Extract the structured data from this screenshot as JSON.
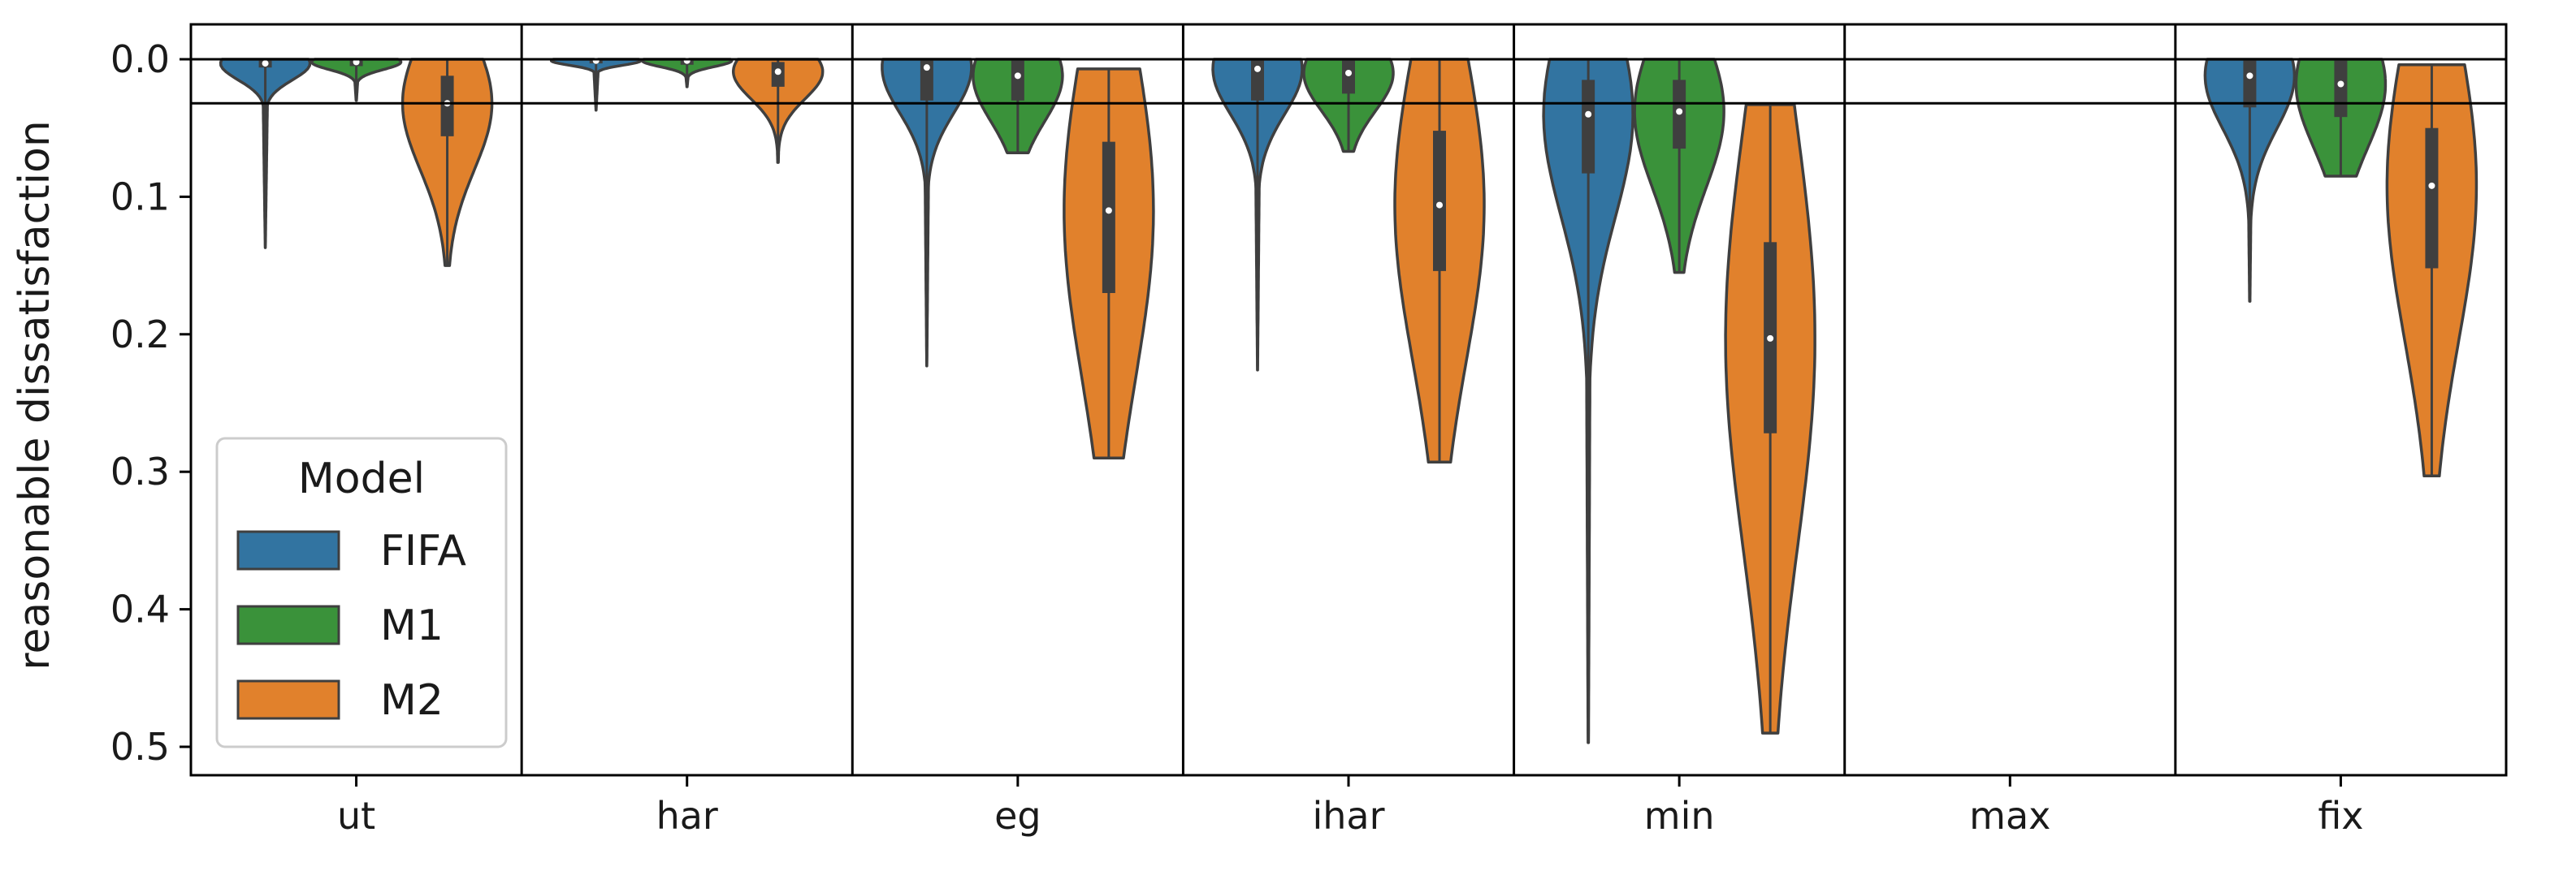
{
  "chart_data": {
    "type": "violin",
    "title": "",
    "xlabel": "",
    "ylabel": "reasonable dissatisfaction",
    "ylim": [
      0.52,
      -0.025
    ],
    "y_inverted": true,
    "yticks": [
      "0.0",
      "0.1",
      "0.2",
      "0.3",
      "0.4",
      "0.5"
    ],
    "ytick_values": [
      0.0,
      0.1,
      0.2,
      0.3,
      0.4,
      0.5
    ],
    "categories": [
      "ut",
      "har",
      "eg",
      "ihar",
      "min",
      "max",
      "fix"
    ],
    "reference_lines": [
      0.0,
      0.032
    ],
    "legend": {
      "title": "Model",
      "position": "lower-left",
      "entries": [
        "FIFA",
        "M1",
        "M2"
      ]
    },
    "series": [
      {
        "name": "FIFA",
        "color": "#3274a1",
        "violins": [
          {
            "category": "ut",
            "min": 0.0,
            "q1": 0.0,
            "median": 0.003,
            "q3": 0.006,
            "max": 0.137
          },
          {
            "category": "har",
            "min": 0.0,
            "q1": 0.0,
            "median": 0.001,
            "q3": 0.003,
            "max": 0.037
          },
          {
            "category": "eg",
            "min": 0.0,
            "q1": 0.0,
            "median": 0.006,
            "q3": 0.03,
            "max": 0.223
          },
          {
            "category": "ihar",
            "min": 0.0,
            "q1": 0.0,
            "median": 0.007,
            "q3": 0.03,
            "max": 0.226
          },
          {
            "category": "min",
            "min": 0.0,
            "q1": 0.015,
            "median": 0.04,
            "q3": 0.083,
            "max": 0.497
          },
          {
            "category": "max",
            "min": 0.0,
            "q1": 0.0,
            "median": 0.0,
            "q3": 0.0,
            "max": 0.0
          },
          {
            "category": "fix",
            "min": 0.0,
            "q1": 0.0,
            "median": 0.012,
            "q3": 0.035,
            "max": 0.176
          }
        ]
      },
      {
        "name": "M1",
        "color": "#3a923a",
        "violins": [
          {
            "category": "ut",
            "min": 0.0,
            "q1": 0.0,
            "median": 0.002,
            "q3": 0.005,
            "max": 0.03
          },
          {
            "category": "har",
            "min": 0.0,
            "q1": 0.0,
            "median": 0.001,
            "q3": 0.004,
            "max": 0.02
          },
          {
            "category": "eg",
            "min": 0.0,
            "q1": 0.0,
            "median": 0.012,
            "q3": 0.03,
            "max": 0.068
          },
          {
            "category": "ihar",
            "min": 0.0,
            "q1": 0.0,
            "median": 0.01,
            "q3": 0.025,
            "max": 0.067
          },
          {
            "category": "min",
            "min": 0.0,
            "q1": 0.015,
            "median": 0.038,
            "q3": 0.065,
            "max": 0.155
          },
          {
            "category": "max",
            "min": 0.0,
            "q1": 0.0,
            "median": 0.0,
            "q3": 0.0,
            "max": 0.0
          },
          {
            "category": "fix",
            "min": 0.0,
            "q1": 0.0,
            "median": 0.018,
            "q3": 0.042,
            "max": 0.085
          }
        ]
      },
      {
        "name": "M2",
        "color": "#e1812c",
        "violins": [
          {
            "category": "ut",
            "min": 0.0,
            "q1": 0.012,
            "median": 0.032,
            "q3": 0.056,
            "max": 0.15
          },
          {
            "category": "har",
            "min": 0.0,
            "q1": 0.002,
            "median": 0.009,
            "q3": 0.02,
            "max": 0.075
          },
          {
            "category": "eg",
            "min": 0.007,
            "q1": 0.06,
            "median": 0.11,
            "q3": 0.17,
            "max": 0.29
          },
          {
            "category": "ihar",
            "min": 0.0,
            "q1": 0.052,
            "median": 0.106,
            "q3": 0.154,
            "max": 0.293
          },
          {
            "category": "min",
            "min": 0.033,
            "q1": 0.133,
            "median": 0.203,
            "q3": 0.272,
            "max": 0.49
          },
          {
            "category": "max",
            "min": 0.0,
            "q1": 0.0,
            "median": 0.0,
            "q3": 0.0,
            "max": 0.0
          },
          {
            "category": "fix",
            "min": 0.004,
            "q1": 0.05,
            "median": 0.092,
            "q3": 0.152,
            "max": 0.303
          }
        ]
      }
    ]
  }
}
